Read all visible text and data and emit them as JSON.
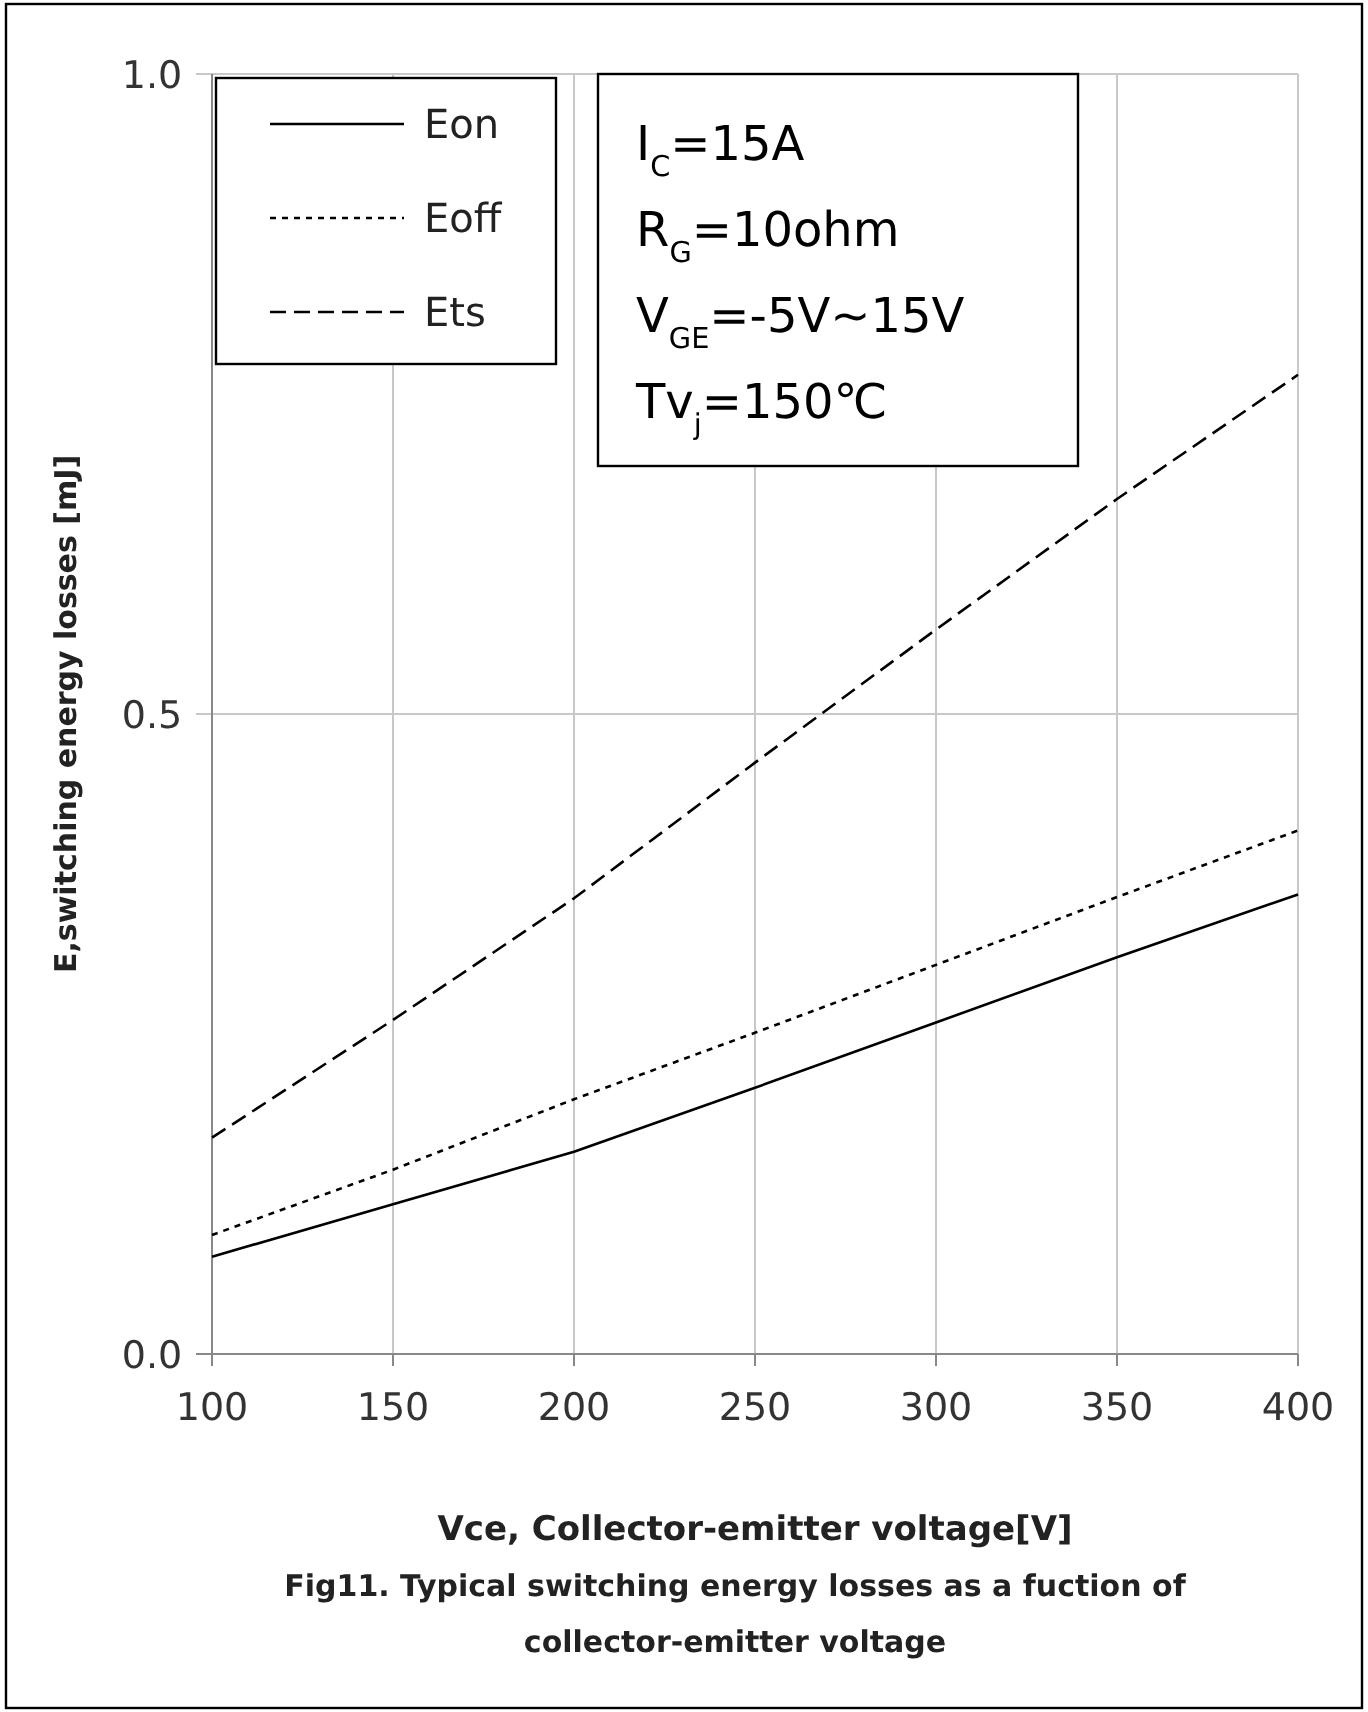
{
  "chart_data": {
    "type": "line",
    "title": "Fig11. Typical switching energy losses as a fuction of\ncollector-emitter voltage",
    "xlabel": "Vce, Collector-emitter voltage[V]",
    "ylabel": "E,switching energy losses [mJ]",
    "x": [
      100,
      150,
      200,
      250,
      300,
      350,
      400
    ],
    "series": [
      {
        "name": "Eon",
        "color": "#000000",
        "line_style": "solid",
        "values": [
          0.076,
          0.117,
          0.158,
          0.208,
          0.259,
          0.31,
          0.359
        ]
      },
      {
        "name": "Eoff",
        "color": "#000000",
        "line_style": "dotted",
        "values": [
          0.093,
          0.144,
          0.199,
          0.251,
          0.304,
          0.357,
          0.409
        ]
      },
      {
        "name": "Ets",
        "color": "#000000",
        "line_style": "dashed",
        "values": [
          0.169,
          0.261,
          0.356,
          0.462,
          0.566,
          0.668,
          0.765
        ]
      }
    ],
    "xlim": [
      100,
      400
    ],
    "xticks": [
      100,
      150,
      200,
      250,
      300,
      350,
      400
    ],
    "ylim": [
      0,
      1
    ],
    "yticks": [
      {
        "value": 0,
        "label": "0.0"
      },
      {
        "value": 0.5,
        "label": "0.5"
      },
      {
        "value": 1,
        "label": "1.0"
      }
    ],
    "grid": true,
    "legend": "top left",
    "marker": "none",
    "annotations": [
      "I$_{C}$=15A\nR$_{G}$=10ohm\nV$_{GE}$=-5V~15V\nTv$_{j}$=150℃"
    ]
  }
}
